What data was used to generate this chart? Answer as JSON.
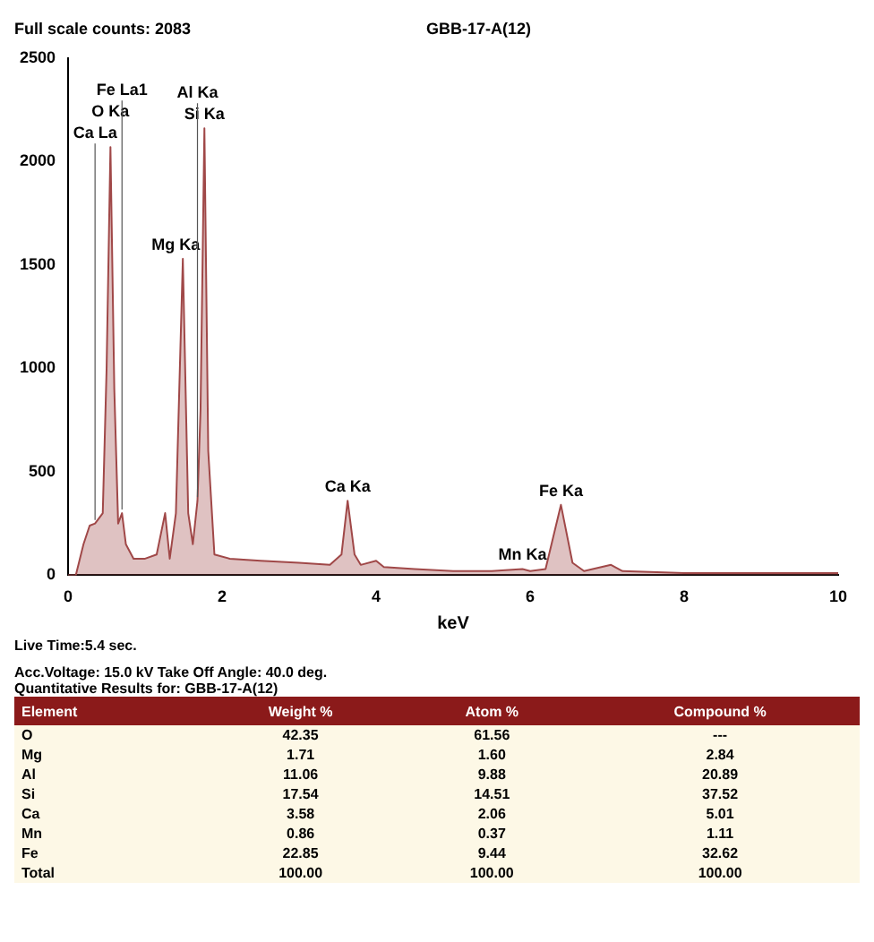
{
  "chart_data": [
    {
      "type": "area",
      "title": "GBB-17-A(12)",
      "xlabel": "keV",
      "x": [
        0,
        0.1,
        0.2,
        0.28,
        0.35,
        0.45,
        0.5,
        0.55,
        0.6,
        0.65,
        0.7,
        0.75,
        0.85,
        1.0,
        1.15,
        1.26,
        1.32,
        1.4,
        1.49,
        1.56,
        1.62,
        1.68,
        1.72,
        1.77,
        1.82,
        1.9,
        2.1,
        2.5,
        3.0,
        3.4,
        3.55,
        3.63,
        3.72,
        3.8,
        4.0,
        4.1,
        4.5,
        5.0,
        5.5,
        5.9,
        6.0,
        6.2,
        6.4,
        6.55,
        6.7,
        7.05,
        7.2,
        8,
        9,
        10
      ],
      "values": [
        0,
        0,
        150,
        240,
        250,
        300,
        1000,
        2070,
        900,
        250,
        300,
        150,
        80,
        80,
        100,
        300,
        80,
        300,
        1530,
        300,
        150,
        360,
        800,
        2160,
        600,
        100,
        80,
        70,
        60,
        50,
        100,
        360,
        100,
        50,
        70,
        40,
        30,
        20,
        20,
        30,
        20,
        30,
        340,
        60,
        20,
        50,
        20,
        10,
        10,
        10
      ],
      "color": "#a04848",
      "xlim": [
        0,
        10
      ],
      "xticks": [
        0,
        2,
        4,
        6,
        8,
        10
      ],
      "ylim": [
        0,
        2500
      ],
      "yticks": [
        0,
        500,
        1000,
        1500,
        2000,
        2500
      ],
      "grid": false,
      "legend": false,
      "marker": "none",
      "annotations": [
        "Full scale counts: 2083",
        {
          "text": "Ca La",
          "x": 0.35,
          "y": 250
        },
        {
          "text": "O Ka",
          "x": 0.55,
          "y": 2070
        },
        {
          "text": "Fe La1",
          "x": 0.7,
          "y": 300
        },
        {
          "text": "Mg Ka",
          "x": 1.49,
          "y": 1530
        },
        {
          "text": "Si Ka",
          "x": 1.77,
          "y": 2160
        },
        {
          "text": "Al Ka",
          "x": 1.68,
          "y": 360
        },
        {
          "text": "Ca Ka",
          "x": 3.63,
          "y": 360
        },
        {
          "text": "Mn Ka",
          "x": 5.9,
          "y": 30
        },
        {
          "text": "Fe Ka",
          "x": 6.4,
          "y": 340
        },
        "Live Time:5.4 sec.",
        "Acc.Voltage: 15.0 kV Take Off Angle: 40.0 deg."
      ]
    },
    {
      "type": "other",
      "title": "Quantitative Results for: GBB-17-A(12)",
      "categories": [
        "Element",
        "Weight %",
        "Atom %",
        "Compound %"
      ],
      "y_categories": [
        "O",
        "Mg",
        "Al",
        "Si",
        "Ca",
        "Mn",
        "Fe",
        "Total"
      ],
      "cell_labels": [
        [
          "42.35",
          "61.56",
          "---"
        ],
        [
          "1.71",
          "1.60",
          "2.84"
        ],
        [
          "11.06",
          "9.88",
          "20.89"
        ],
        [
          "17.54",
          "14.51",
          "37.52"
        ],
        [
          "3.58",
          "2.06",
          "5.01"
        ],
        [
          "0.86",
          "0.37",
          "1.11"
        ],
        [
          "22.85",
          "9.44",
          "32.62"
        ],
        [
          "100.00",
          "100.00",
          "100.00"
        ]
      ]
    }
  ]
}
